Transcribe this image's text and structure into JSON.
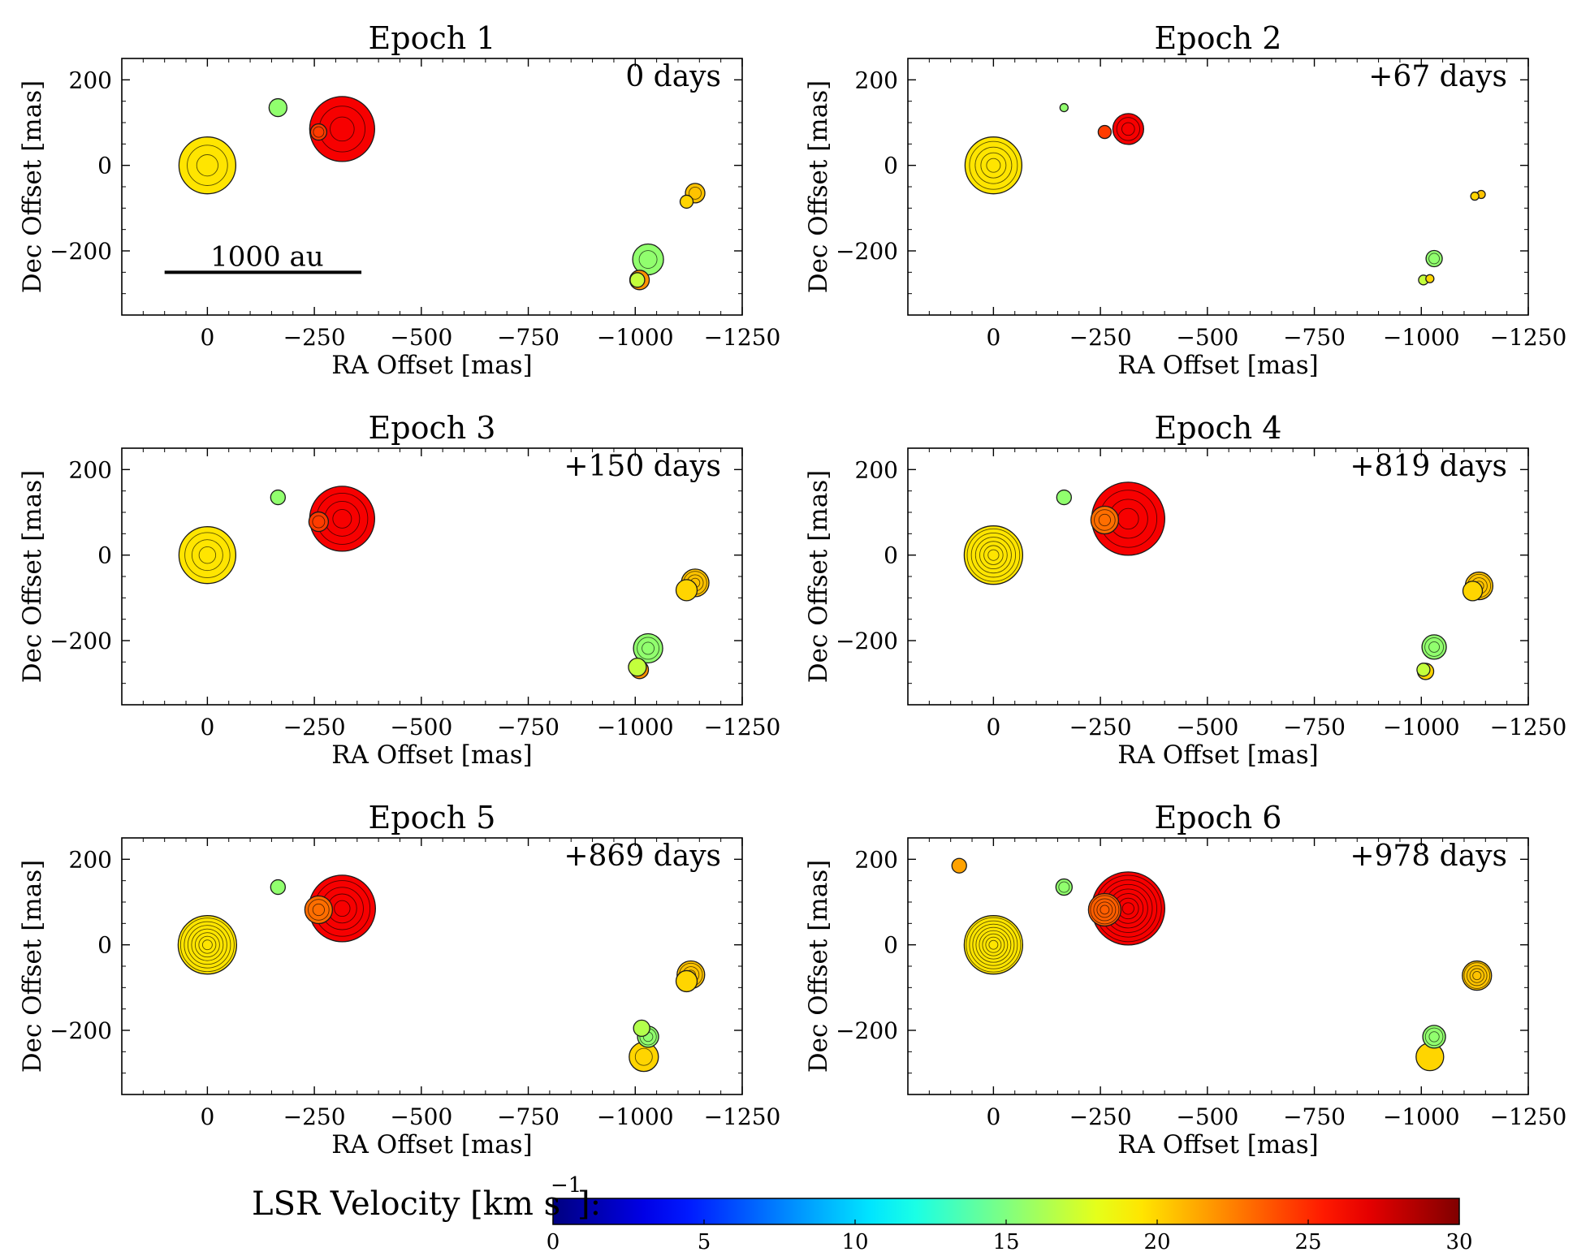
{
  "chart_data": [
    {
      "type": "scatter",
      "title": "Epoch 1",
      "annotation": "0 days",
      "scalebar_label": "1000 au",
      "xlabel": "RA  Offset  [mas]",
      "ylabel": "Dec Offset  [mas]",
      "xlim": [
        200,
        -1250
      ],
      "ylim": [
        -350,
        250
      ],
      "xticks": [
        0,
        -250,
        -500,
        -750,
        -1000,
        -1250
      ],
      "yticks": [
        200,
        0,
        -200
      ],
      "xtick_labels": [
        "0",
        "−250",
        "−500",
        "−750",
        "−1000",
        "−1250"
      ],
      "ytick_labels": [
        "200",
        "0",
        "−200"
      ],
      "points": [
        {
          "ra": 0,
          "dec": 0,
          "vel": 19.5,
          "size": 70,
          "rings": 3
        },
        {
          "ra": -165,
          "dec": 135,
          "vel": 15.5,
          "size": 22,
          "rings": 1
        },
        {
          "ra": -260,
          "dec": 78,
          "vel": 24.5,
          "size": 20,
          "rings": 2
        },
        {
          "ra": -315,
          "dec": 85,
          "vel": 26.5,
          "size": 80,
          "rings": 3
        },
        {
          "ra": -1140,
          "dec": -65,
          "vel": 20.5,
          "size": 24,
          "rings": 2
        },
        {
          "ra": -1120,
          "dec": -85,
          "vel": 20,
          "size": 16,
          "rings": 1
        },
        {
          "ra": -1030,
          "dec": -220,
          "vel": 15.5,
          "size": 38,
          "rings": 2
        },
        {
          "ra": -1010,
          "dec": -268,
          "vel": 22,
          "size": 24,
          "rings": 1
        },
        {
          "ra": -1005,
          "dec": -268,
          "vel": 17,
          "size": 18,
          "rings": 1
        }
      ]
    },
    {
      "type": "scatter",
      "title": "Epoch 2",
      "annotation": "+67 days",
      "xlabel": "RA  Offset  [mas]",
      "ylabel": "Dec Offset  [mas]",
      "xlim": [
        200,
        -1250
      ],
      "ylim": [
        -350,
        250
      ],
      "xticks": [
        0,
        -250,
        -500,
        -750,
        -1000,
        -1250
      ],
      "yticks": [
        200,
        0,
        -200
      ],
      "xtick_labels": [
        "0",
        "−250",
        "−500",
        "−750",
        "−1000",
        "−1250"
      ],
      "ytick_labels": [
        "200",
        "0",
        "−200"
      ],
      "points": [
        {
          "ra": 0,
          "dec": 0,
          "vel": 19.5,
          "size": 70,
          "rings": 5
        },
        {
          "ra": -165,
          "dec": 135,
          "vel": 15.5,
          "size": 10,
          "rings": 1
        },
        {
          "ra": -260,
          "dec": 78,
          "vel": 24.5,
          "size": 16,
          "rings": 1
        },
        {
          "ra": -315,
          "dec": 85,
          "vel": 26.5,
          "size": 38,
          "rings": 3
        },
        {
          "ra": -1140,
          "dec": -68,
          "vel": 20.5,
          "size": 10,
          "rings": 1
        },
        {
          "ra": -1125,
          "dec": -72,
          "vel": 20,
          "size": 10,
          "rings": 1
        },
        {
          "ra": -1030,
          "dec": -218,
          "vel": 15.5,
          "size": 20,
          "rings": 2
        },
        {
          "ra": -1020,
          "dec": -265,
          "vel": 20,
          "size": 10,
          "rings": 1
        },
        {
          "ra": -1005,
          "dec": -268,
          "vel": 17,
          "size": 12,
          "rings": 1
        }
      ]
    },
    {
      "type": "scatter",
      "title": "Epoch 3",
      "annotation": "+150 days",
      "xlabel": "RA  Offset  [mas]",
      "ylabel": "Dec Offset  [mas]",
      "xlim": [
        200,
        -1250
      ],
      "ylim": [
        -350,
        250
      ],
      "xticks": [
        0,
        -250,
        -500,
        -750,
        -1000,
        -1250
      ],
      "yticks": [
        200,
        0,
        -200
      ],
      "xtick_labels": [
        "0",
        "−250",
        "−500",
        "−750",
        "−1000",
        "−1250"
      ],
      "ytick_labels": [
        "200",
        "0",
        "−200"
      ],
      "points": [
        {
          "ra": 0,
          "dec": 0,
          "vel": 19.5,
          "size": 70,
          "rings": 4
        },
        {
          "ra": -165,
          "dec": 135,
          "vel": 15.5,
          "size": 18,
          "rings": 1
        },
        {
          "ra": -260,
          "dec": 78,
          "vel": 24.5,
          "size": 24,
          "rings": 2
        },
        {
          "ra": -315,
          "dec": 85,
          "vel": 26.5,
          "size": 80,
          "rings": 4
        },
        {
          "ra": -1140,
          "dec": -65,
          "vel": 20.5,
          "size": 34,
          "rings": 4
        },
        {
          "ra": -1120,
          "dec": -82,
          "vel": 20,
          "size": 26,
          "rings": 1
        },
        {
          "ra": -1030,
          "dec": -218,
          "vel": 15.5,
          "size": 36,
          "rings": 3
        },
        {
          "ra": -1010,
          "dec": -268,
          "vel": 22,
          "size": 22,
          "rings": 1
        },
        {
          "ra": -1005,
          "dec": -262,
          "vel": 17,
          "size": 22,
          "rings": 1
        }
      ]
    },
    {
      "type": "scatter",
      "title": "Epoch 4",
      "annotation": "+819 days",
      "xlabel": "RA  Offset  [mas]",
      "ylabel": "Dec Offset  [mas]",
      "xlim": [
        200,
        -1250
      ],
      "ylim": [
        -350,
        250
      ],
      "xticks": [
        0,
        -250,
        -500,
        -750,
        -1000,
        -1250
      ],
      "yticks": [
        200,
        0,
        -200
      ],
      "xtick_labels": [
        "0",
        "−250",
        "−500",
        "−750",
        "−1000",
        "−1250"
      ],
      "ytick_labels": [
        "200",
        "0",
        "−200"
      ],
      "points": [
        {
          "ra": 0,
          "dec": 0,
          "vel": 19.5,
          "size": 72,
          "rings": 7
        },
        {
          "ra": -165,
          "dec": 135,
          "vel": 15.5,
          "size": 18,
          "rings": 1
        },
        {
          "ra": -260,
          "dec": 82,
          "vel": 23,
          "size": 34,
          "rings": 3
        },
        {
          "ra": -315,
          "dec": 85,
          "vel": 26.5,
          "size": 90,
          "rings": 4
        },
        {
          "ra": -1135,
          "dec": -72,
          "vel": 20.5,
          "size": 34,
          "rings": 4
        },
        {
          "ra": -1120,
          "dec": -84,
          "vel": 20,
          "size": 24,
          "rings": 1
        },
        {
          "ra": -1030,
          "dec": -215,
          "vel": 15.5,
          "size": 30,
          "rings": 3
        },
        {
          "ra": -1010,
          "dec": -272,
          "vel": 20,
          "size": 20,
          "rings": 1
        },
        {
          "ra": -1005,
          "dec": -268,
          "vel": 17,
          "size": 16,
          "rings": 1
        }
      ]
    },
    {
      "type": "scatter",
      "title": "Epoch 5",
      "annotation": "+869 days",
      "xlabel": "RA  Offset  [mas]",
      "ylabel": "Dec Offset  [mas]",
      "xlim": [
        200,
        -1250
      ],
      "ylim": [
        -350,
        250
      ],
      "xticks": [
        0,
        -250,
        -500,
        -750,
        -1000,
        -1250
      ],
      "yticks": [
        200,
        0,
        -200
      ],
      "xtick_labels": [
        "0",
        "−250",
        "−500",
        "−750",
        "−1000",
        "−1250"
      ],
      "ytick_labels": [
        "200",
        "0",
        "−200"
      ],
      "points": [
        {
          "ra": 0,
          "dec": 0,
          "vel": 19.5,
          "size": 72,
          "rings": 8
        },
        {
          "ra": -165,
          "dec": 135,
          "vel": 15.5,
          "size": 18,
          "rings": 1
        },
        {
          "ra": -260,
          "dec": 82,
          "vel": 23,
          "size": 34,
          "rings": 3
        },
        {
          "ra": -315,
          "dec": 85,
          "vel": 26.5,
          "size": 82,
          "rings": 5
        },
        {
          "ra": -1130,
          "dec": -70,
          "vel": 20.5,
          "size": 34,
          "rings": 4
        },
        {
          "ra": -1120,
          "dec": -85,
          "vel": 20,
          "size": 26,
          "rings": 1
        },
        {
          "ra": -1030,
          "dec": -215,
          "vel": 15.5,
          "size": 26,
          "rings": 3
        },
        {
          "ra": -1020,
          "dec": -262,
          "vel": 20,
          "size": 36,
          "rings": 2
        },
        {
          "ra": -1015,
          "dec": -195,
          "vel": 16.5,
          "size": 20,
          "rings": 1
        }
      ]
    },
    {
      "type": "scatter",
      "title": "Epoch 6",
      "annotation": "+978 days",
      "xlabel": "RA  Offset  [mas]",
      "ylabel": "Dec Offset  [mas]",
      "xlim": [
        200,
        -1250
      ],
      "ylim": [
        -350,
        250
      ],
      "xticks": [
        0,
        -250,
        -500,
        -750,
        -1000,
        -1250
      ],
      "yticks": [
        200,
        0,
        -200
      ],
      "xtick_labels": [
        "0",
        "−250",
        "−500",
        "−750",
        "−1000",
        "−1250"
      ],
      "ytick_labels": [
        "200",
        "0",
        "−200"
      ],
      "points": [
        {
          "ra": 80,
          "dec": 185,
          "vel": 21.5,
          "size": 18,
          "rings": 1
        },
        {
          "ra": 0,
          "dec": 0,
          "vel": 19.5,
          "size": 72,
          "rings": 9
        },
        {
          "ra": -165,
          "dec": 135,
          "vel": 15.5,
          "size": 20,
          "rings": 2
        },
        {
          "ra": -260,
          "dec": 82,
          "vel": 23.5,
          "size": 40,
          "rings": 5
        },
        {
          "ra": -315,
          "dec": 85,
          "vel": 26.5,
          "size": 90,
          "rings": 8
        },
        {
          "ra": -1130,
          "dec": -72,
          "vel": 20.5,
          "size": 36,
          "rings": 5
        },
        {
          "ra": -1030,
          "dec": -215,
          "vel": 15.5,
          "size": 28,
          "rings": 3
        },
        {
          "ra": -1020,
          "dec": -262,
          "vel": 20,
          "size": 34,
          "rings": 1
        }
      ]
    }
  ],
  "colorbar": {
    "label": "LSR Velocity [km s",
    "label_exponent": "−1",
    "label_suffix": "]:",
    "min": 0,
    "max": 30,
    "ticks": [
      0,
      5,
      10,
      15,
      20,
      25,
      30
    ],
    "tick_labels": [
      "0",
      "5",
      "10",
      "15",
      "20",
      "25",
      "30"
    ],
    "colormap": "jet"
  }
}
